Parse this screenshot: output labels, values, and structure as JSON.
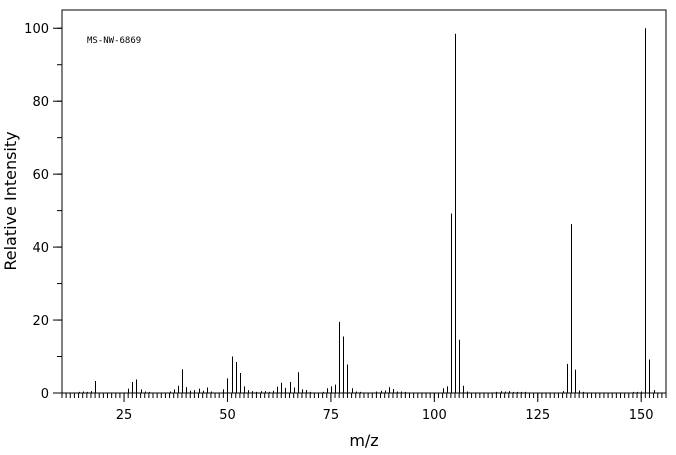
{
  "chart_data": {
    "type": "bar",
    "annotation": "MS-NW-6869",
    "xlabel": "m/z",
    "ylabel": "Relative Intensity",
    "xlim": [
      10,
      156
    ],
    "ylim": [
      0,
      105
    ],
    "x_ticks": [
      25,
      50,
      75,
      100,
      125,
      150
    ],
    "y_ticks": [
      0,
      20,
      40,
      60,
      80,
      100
    ],
    "grid": false,
    "peaks": {
      "x": [
        14,
        15,
        16,
        17,
        18,
        26,
        27,
        28,
        29,
        30,
        31,
        36,
        37,
        38,
        39,
        40,
        41,
        42,
        43,
        44,
        45,
        46,
        49,
        50,
        51,
        52,
        53,
        54,
        55,
        56,
        57,
        58,
        59,
        60,
        61,
        62,
        63,
        64,
        65,
        66,
        67,
        68,
        69,
        70,
        73,
        74,
        75,
        76,
        77,
        78,
        79,
        80,
        81,
        82,
        86,
        87,
        88,
        89,
        90,
        91,
        92,
        93,
        102,
        103,
        104,
        105,
        106,
        107,
        108,
        115,
        116,
        117,
        118,
        119,
        120,
        121,
        122,
        131,
        132,
        133,
        134,
        135,
        136,
        148,
        149,
        150,
        151,
        152,
        153
      ],
      "y": [
        0.3,
        0.4,
        0.3,
        0.5,
        3.3,
        1.2,
        3.0,
        3.7,
        1.0,
        0.4,
        0.3,
        0.4,
        1.0,
        2.0,
        6.5,
        1.6,
        0.6,
        0.8,
        1.2,
        0.6,
        1.5,
        0.4,
        1.0,
        4.0,
        10.0,
        8.5,
        5.5,
        1.8,
        0.8,
        0.5,
        0.3,
        0.5,
        0.5,
        0.3,
        0.6,
        1.7,
        2.8,
        1.4,
        3.0,
        1.5,
        5.7,
        1.0,
        0.8,
        0.3,
        0.3,
        1.3,
        1.8,
        2.3,
        19.5,
        15.5,
        7.8,
        1.3,
        0.4,
        0.3,
        0.4,
        0.6,
        0.7,
        1.6,
        1.1,
        0.4,
        0.4,
        0.3,
        1.3,
        1.8,
        49.2,
        98.5,
        14.6,
        2.0,
        0.4,
        0.3,
        0.5,
        0.4,
        0.5,
        0.3,
        0.3,
        0.3,
        0.3,
        0.5,
        8.0,
        46.3,
        6.4,
        0.7,
        0.3,
        0.3,
        0.3,
        0.4,
        100.0,
        9.2,
        0.8
      ]
    }
  }
}
